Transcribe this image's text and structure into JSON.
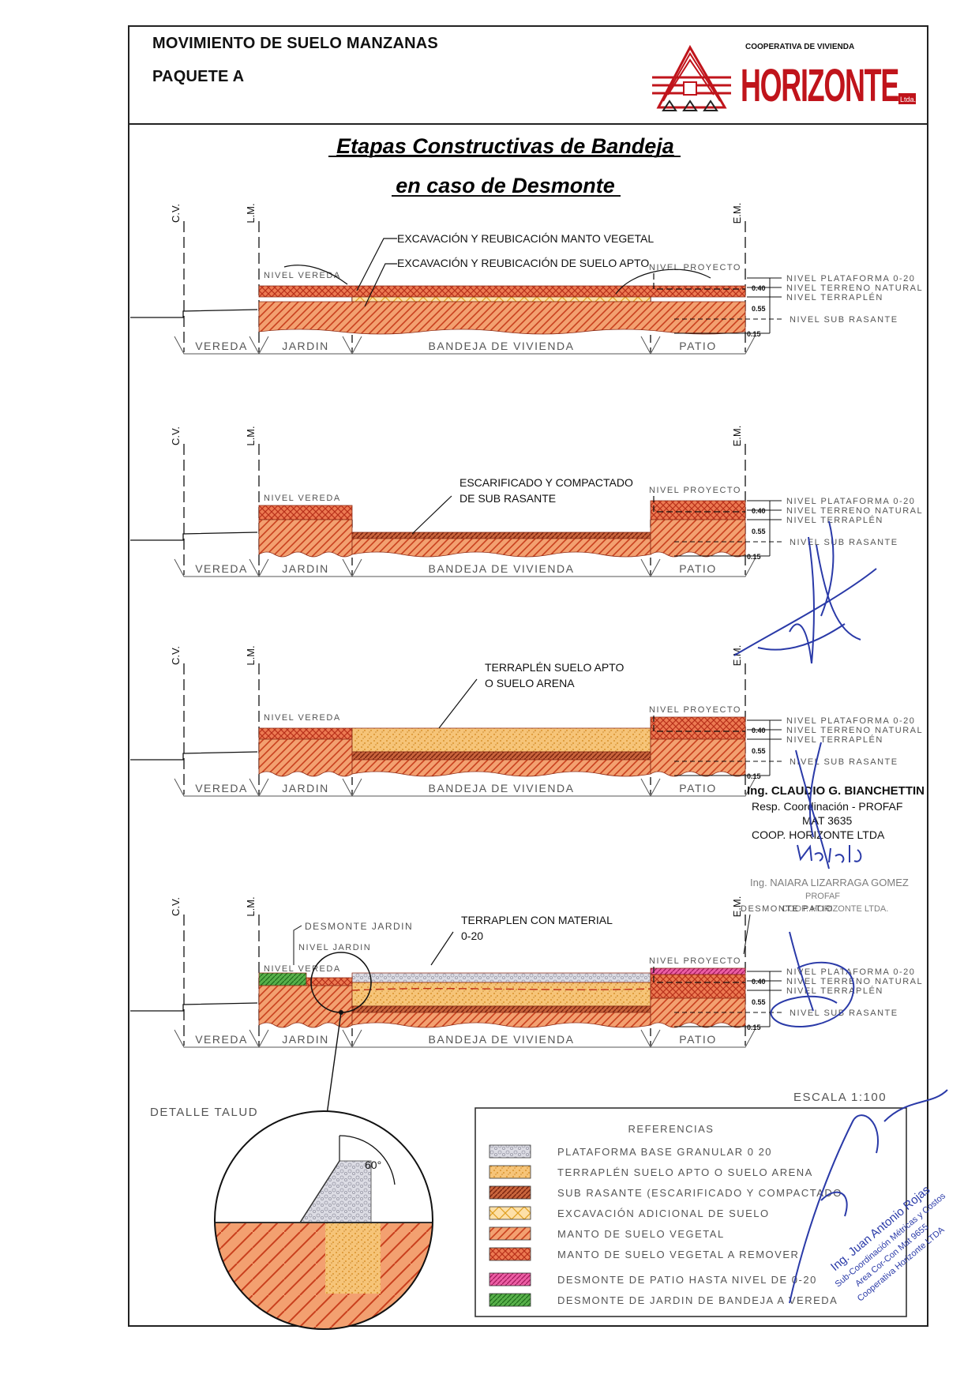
{
  "header": {
    "line1": "MOVIMIENTO DE SUELO  MANZANAS",
    "line2": "PAQUETE A",
    "logo_top": "COOPERATIVA DE VIVIENDA",
    "logo_name": "HORIZONTE",
    "logo_suffix": "Ltda."
  },
  "title": {
    "line1": "Etapas Constructivas de Bandeja",
    "line2": "en caso de Desmonte"
  },
  "common": {
    "cv": "C.V.",
    "lm": "L.M.",
    "em": "E.M.",
    "nivel_vereda": "NIVEL VEREDA",
    "nivel_proyecto": "NIVEL PROYECTO",
    "nivel_plataforma": "NIVEL PLATAFORMA 0-20",
    "nivel_terreno": "NIVEL TERRENO NATURAL",
    "nivel_terraplen": "NIVEL TERRAPLÉN",
    "nivel_sub_rasante": "NIVEL SUB RASANTE",
    "dim_040": "0.40",
    "dim_055": "0.55",
    "dim_015": "0.15",
    "vereda": "VEREDA",
    "jardin": "JARDIN",
    "bandeja": "BANDEJA DE VIVIENDA",
    "patio": "PATIO"
  },
  "stage1": {
    "callout1": "EXCAVACIÓN Y REUBICACIÓN MANTO VEGETAL",
    "callout2": "EXCAVACIÓN Y REUBICACIÓN DE SUELO APTO"
  },
  "stage2": {
    "callout1": "ESCARIFICADO Y COMPACTADO",
    "callout2": "DE SUB RASANTE"
  },
  "stage3": {
    "callout1": "TERRAPLÉN SUELO APTO",
    "callout2": "O SUELO ARENA"
  },
  "stage4": {
    "desmonte_jardin": "DESMONTE JARDIN",
    "nivel_jardin": "NIVEL JARDIN",
    "callout1": "TERRAPLEN CON MATERIAL",
    "callout2": "0-20",
    "desmonte_patio": "DESMONTE PATIO"
  },
  "detalle": {
    "label": "DETALLE TALUD",
    "angle": "60°"
  },
  "escala": "ESCALA 1:100",
  "references": {
    "title": "REFERENCIAS",
    "items": [
      {
        "label": "PLATAFORMA BASE GRANULAR 0 20",
        "color": "#c8c8d0"
      },
      {
        "label": "TERRAPLÉN SUELO APTO O SUELO ARENA",
        "color": "#f2b24a"
      },
      {
        "label": "SUB RASANTE (ESCARIFICADO Y COMPACTADO",
        "color": "#b04a2a"
      },
      {
        "label": "EXCAVACIÓN ADICIONAL DE SUELO",
        "color": "#f6c84a"
      },
      {
        "label": "MANTO DE SUELO VEGETAL",
        "color": "#ee7a3a"
      },
      {
        "label": "MANTO DE SUELO VEGETAL A REMOVER",
        "color": "#d8502e"
      },
      {
        "label": "DESMONTE DE PATIO HASTA NIVEL DE 0-20",
        "color": "#e0408a"
      },
      {
        "label": "DESMONTE DE JARDIN DE BANDEJA A VEREDA",
        "color": "#3f9a3a"
      }
    ]
  },
  "stamps": {
    "stamp1_line1": "Ing. CLAUDIO G. BIANCHETTIN",
    "stamp1_line2": "Resp. Coordinación - PROFAF",
    "stamp1_line3": "MAT 3635",
    "stamp1_line4": "COOP. HORIZONTE LTDA",
    "stamp2_line1": "Ing. NAIARA LIZARRAGA GOMEZ",
    "stamp2_line2": "PROFAF",
    "stamp2_line3": "COOP. HORIZONTE LTDA.",
    "stamp3_line1": "Ing. Juan Antonio Rojas",
    "stamp3_line2": "Sub-Coordinación Métricas y Costos",
    "stamp3_line3": "Area Cor-Con Mat 9655",
    "stamp3_line4": "Cooperativa Horizonte LTDA"
  }
}
